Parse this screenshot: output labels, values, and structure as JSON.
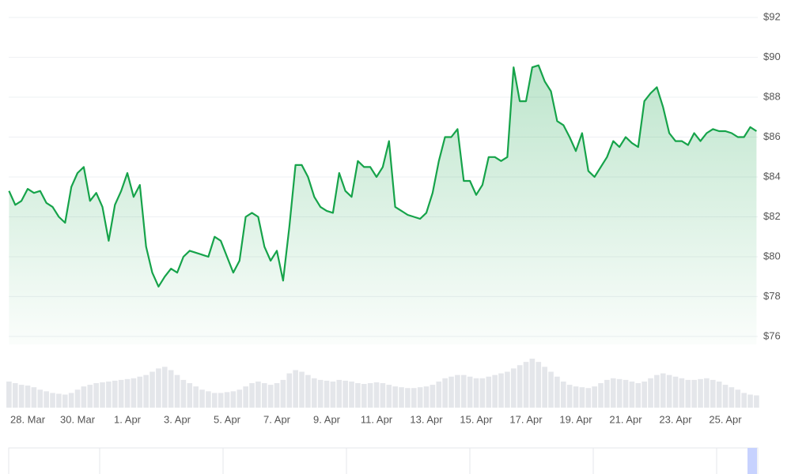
{
  "chart_data": {
    "type": "line",
    "categories": [
      null,
      null,
      null,
      "28. Mar",
      null,
      null,
      null,
      null,
      null,
      null,
      null,
      "30. Mar",
      null,
      null,
      null,
      null,
      null,
      null,
      null,
      "1. Apr",
      null,
      null,
      null,
      null,
      null,
      null,
      null,
      "3. Apr",
      null,
      null,
      null,
      null,
      null,
      null,
      null,
      "5. Apr",
      null,
      null,
      null,
      null,
      null,
      null,
      null,
      "7. Apr",
      null,
      null,
      null,
      null,
      null,
      null,
      null,
      "9. Apr",
      null,
      null,
      null,
      null,
      null,
      null,
      null,
      "11. Apr",
      null,
      null,
      null,
      null,
      null,
      null,
      null,
      "13. Apr",
      null,
      null,
      null,
      null,
      null,
      null,
      null,
      "15. Apr",
      null,
      null,
      null,
      null,
      null,
      null,
      null,
      "17. Apr",
      null,
      null,
      null,
      null,
      null,
      null,
      null,
      "19. Apr",
      null,
      null,
      null,
      null,
      null,
      null,
      null,
      "21. Apr",
      null,
      null,
      null,
      null,
      null,
      null,
      null,
      "23. Apr",
      null,
      null,
      null,
      null,
      null,
      null,
      null,
      "25. Apr",
      null,
      null,
      null,
      null,
      null
    ],
    "series": [
      {
        "color": "#16a34a",
        "values": [
          83.3,
          82.6,
          82.8,
          83.4,
          83.2,
          83.3,
          82.7,
          82.5,
          82.0,
          81.7,
          83.5,
          84.2,
          84.5,
          82.8,
          83.2,
          82.5,
          80.8,
          82.6,
          83.3,
          84.2,
          83.0,
          83.6,
          80.5,
          79.2,
          78.5,
          79.0,
          79.4,
          79.2,
          80.0,
          80.3,
          80.2,
          80.1,
          80.0,
          81.0,
          80.8,
          80.0,
          79.2,
          79.8,
          82.0,
          82.2,
          82.0,
          80.5,
          79.8,
          80.3,
          78.8,
          81.5,
          84.6,
          84.6,
          84.0,
          83.0,
          82.5,
          82.3,
          82.2,
          84.2,
          83.3,
          83.0,
          84.8,
          84.5,
          84.5,
          84.0,
          84.5,
          85.8,
          82.5,
          82.3,
          82.1,
          82.0,
          81.9,
          82.2,
          83.2,
          84.8,
          86.0,
          86.0,
          86.4,
          83.8,
          83.8,
          83.1,
          83.6,
          85.0,
          85.0,
          84.8,
          85.0,
          89.5,
          87.8,
          87.8,
          89.5,
          89.6,
          88.8,
          88.3,
          86.8,
          86.6,
          86.0,
          85.3,
          86.2,
          84.3,
          84.0,
          84.5,
          85.0,
          85.8,
          85.5,
          86.0,
          85.7,
          85.5,
          87.8,
          88.2,
          88.5,
          87.5,
          86.2,
          85.8,
          85.8,
          85.6,
          86.2,
          85.8,
          86.2,
          86.4,
          86.3,
          86.3,
          86.2,
          86.0,
          86.0,
          86.5,
          86.3
        ]
      }
    ],
    "volume": {
      "color": "#e4e6ea",
      "values": [
        32,
        30,
        28,
        27,
        25,
        22,
        20,
        18,
        17,
        16,
        18,
        22,
        26,
        28,
        30,
        31,
        32,
        33,
        34,
        35,
        36,
        38,
        40,
        44,
        48,
        50,
        46,
        40,
        34,
        30,
        26,
        22,
        20,
        18,
        18,
        19,
        20,
        22,
        26,
        30,
        32,
        30,
        28,
        30,
        34,
        42,
        46,
        44,
        40,
        36,
        34,
        33,
        32,
        34,
        33,
        32,
        30,
        29,
        30,
        31,
        30,
        28,
        26,
        25,
        24,
        24,
        25,
        26,
        28,
        32,
        36,
        38,
        40,
        40,
        38,
        36,
        36,
        38,
        40,
        42,
        44,
        48,
        52,
        56,
        60,
        56,
        50,
        44,
        38,
        32,
        28,
        26,
        25,
        24,
        26,
        30,
        34,
        36,
        35,
        34,
        32,
        30,
        32,
        36,
        40,
        42,
        40,
        38,
        36,
        34,
        34,
        35,
        36,
        34,
        32,
        28,
        25,
        22,
        18,
        16,
        15
      ]
    },
    "ylim": [
      75.6,
      92.4
    ],
    "yticks": [
      {
        "value": 76,
        "label": "$76"
      },
      {
        "value": 78,
        "label": "$78"
      },
      {
        "value": 80,
        "label": "$80"
      },
      {
        "value": 82,
        "label": "$82"
      },
      {
        "value": 84,
        "label": "$84"
      },
      {
        "value": 86,
        "label": "$86"
      },
      {
        "value": 88,
        "label": "$88"
      },
      {
        "value": 90,
        "label": "$90"
      },
      {
        "value": 92,
        "label": "$92"
      }
    ],
    "grid": true
  }
}
